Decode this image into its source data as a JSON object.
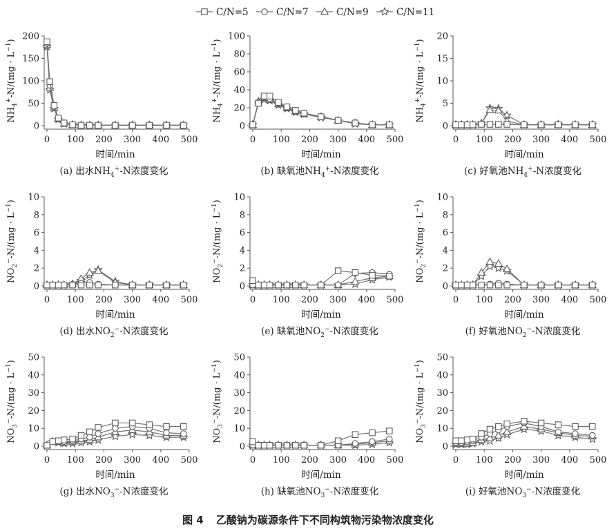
{
  "legend": [
    "C/N=5",
    "C/N=7",
    "C/N=9",
    "C/N=11"
  ],
  "figure_caption": {
    "number": "图 4",
    "text": "乙酸钠为碳源条件下不同构筑物污染物浓度变化"
  },
  "series_colors": {
    "line": "#707070",
    "marker_stroke": "#5a5a5a",
    "marker_fill": "#ffffff"
  },
  "chart_data": [
    {
      "type": "line",
      "id": "a",
      "caption": {
        "prefix": "(a) 出水NH",
        "sub": "4",
        "sup": "+",
        "suffix": "-N浓度变化"
      },
      "ylabel": {
        "main": "NH",
        "sub": "4",
        "sup": "+",
        "rest": "-N/(mg · L",
        "unit_sup": "−1",
        "end": ")"
      },
      "xlabel": "时间/min",
      "ylim": [
        0,
        200
      ],
      "yticks": [
        0,
        50,
        100,
        150,
        200
      ],
      "xlim": [
        0,
        480
      ],
      "xticks": [
        0,
        100,
        200,
        300,
        400,
        500
      ],
      "x": [
        0,
        10,
        25,
        40,
        60,
        90,
        120,
        150,
        180,
        240,
        300,
        360,
        420,
        480
      ],
      "series": [
        {
          "name": "C/N=5",
          "values": [
            187,
            98,
            45,
            17,
            6,
            2,
            1,
            1,
            1,
            1,
            1,
            1,
            1,
            1
          ]
        },
        {
          "name": "C/N=7",
          "values": [
            183,
            90,
            42,
            15,
            5,
            2,
            1,
            1,
            1,
            1,
            1,
            1,
            1,
            1
          ]
        },
        {
          "name": "C/N=9",
          "values": [
            180,
            85,
            40,
            15,
            5,
            2,
            1,
            1,
            1,
            1,
            1,
            1,
            1,
            1
          ]
        },
        {
          "name": "C/N=11",
          "values": [
            176,
            80,
            38,
            14,
            4,
            2,
            1,
            1,
            1,
            1,
            1,
            1,
            1,
            1
          ]
        }
      ]
    },
    {
      "type": "line",
      "id": "b",
      "caption": {
        "prefix": "(b) 缺氧池NH",
        "sub": "4",
        "sup": "+",
        "suffix": "-N浓度变化"
      },
      "ylabel": {
        "main": "NH",
        "sub": "4",
        "sup": "+",
        "rest": "-N/(mg · L",
        "unit_sup": "−1",
        "end": ")"
      },
      "xlabel": "时间/min",
      "ylim": [
        0,
        100
      ],
      "yticks": [
        0,
        20,
        40,
        60,
        80,
        100
      ],
      "xlim": [
        0,
        480
      ],
      "xticks": [
        0,
        100,
        200,
        300,
        400,
        500
      ],
      "x": [
        0,
        20,
        40,
        60,
        90,
        120,
        150,
        180,
        240,
        300,
        360,
        420,
        480
      ],
      "series": [
        {
          "name": "C/N=5",
          "values": [
            1,
            25,
            33,
            33,
            26,
            21,
            17,
            14,
            10,
            6,
            3,
            1,
            1
          ]
        },
        {
          "name": "C/N=7",
          "values": [
            1,
            26,
            32,
            30,
            25,
            20,
            16,
            13,
            10,
            6,
            3,
            1,
            1
          ]
        },
        {
          "name": "C/N=9",
          "values": [
            1,
            27,
            31,
            29,
            24,
            20,
            16,
            13,
            10,
            6,
            3,
            1,
            1
          ]
        },
        {
          "name": "C/N=11",
          "values": [
            1,
            25,
            29,
            28,
            23,
            19,
            15,
            13,
            9,
            6,
            2,
            1,
            1
          ]
        }
      ]
    },
    {
      "type": "line",
      "id": "c",
      "caption": {
        "prefix": "(c) 好氧池NH",
        "sub": "4",
        "sup": "+",
        "suffix": "-N浓度变化"
      },
      "ylabel": {
        "main": "NH",
        "sub": "4",
        "sup": "+",
        "rest": "-N/(mg · L",
        "unit_sup": "−1",
        "end": ")"
      },
      "xlabel": "时间/min",
      "ylim": [
        0,
        20
      ],
      "yticks": [
        0,
        5,
        10,
        15,
        20
      ],
      "xlim": [
        0,
        480
      ],
      "xticks": [
        0,
        100,
        200,
        300,
        400,
        500
      ],
      "x": [
        0,
        20,
        40,
        60,
        90,
        120,
        150,
        180,
        240,
        300,
        360,
        420,
        480
      ],
      "series": [
        {
          "name": "C/N=5",
          "values": [
            0.2,
            0.2,
            0.2,
            0.2,
            0.3,
            0.3,
            0.3,
            0.3,
            0.2,
            0.2,
            0.2,
            0.2,
            0.2
          ]
        },
        {
          "name": "C/N=7",
          "values": [
            0.2,
            0.2,
            0.2,
            0.2,
            0.3,
            0.3,
            0.3,
            0.3,
            0.2,
            0.2,
            0.2,
            0.2,
            0.2
          ]
        },
        {
          "name": "C/N=9",
          "values": [
            0.2,
            0.2,
            0.2,
            0.2,
            0.5,
            3.5,
            3.4,
            1.0,
            0.2,
            0.2,
            0.2,
            0.2,
            0.2
          ]
        },
        {
          "name": "C/N=11",
          "values": [
            0.2,
            0.2,
            0.2,
            0.2,
            0.5,
            3.9,
            3.8,
            2.3,
            0.2,
            0.2,
            0.3,
            0.2,
            0.2
          ]
        }
      ]
    },
    {
      "type": "line",
      "id": "d",
      "caption": {
        "prefix": "(d) 出水NO",
        "sub": "2",
        "sup": "−",
        "suffix": "-N浓度变化"
      },
      "ylabel": {
        "main": "NO",
        "sub": "2",
        "sup": "−",
        "rest": "-N/(mg · L",
        "unit_sup": "−1",
        "end": ")"
      },
      "xlabel": "时间/min",
      "ylim": [
        0,
        10
      ],
      "yticks": [
        0,
        2,
        4,
        6,
        8,
        10
      ],
      "xlim": [
        0,
        480
      ],
      "xticks": [
        0,
        100,
        200,
        300,
        400,
        500
      ],
      "x": [
        0,
        20,
        40,
        60,
        90,
        120,
        150,
        180,
        240,
        300,
        360,
        420,
        480
      ],
      "series": [
        {
          "name": "C/N=5",
          "values": [
            0.1,
            0.1,
            0.1,
            0.1,
            0.1,
            0.1,
            0.1,
            0.1,
            0.1,
            0.1,
            0.1,
            0.1,
            0.1
          ]
        },
        {
          "name": "C/N=7",
          "values": [
            0.1,
            0.1,
            0.1,
            0.1,
            0.2,
            0.3,
            0.4,
            0.2,
            0.1,
            0.1,
            0.1,
            0.1,
            0.1
          ]
        },
        {
          "name": "C/N=9",
          "values": [
            0.1,
            0.1,
            0.1,
            0.1,
            0.2,
            0.8,
            1.5,
            1.7,
            0.4,
            0.1,
            0.1,
            0.1,
            0.1
          ]
        },
        {
          "name": "C/N=11",
          "values": [
            0.1,
            0.1,
            0.1,
            0.1,
            0.2,
            0.6,
            1.2,
            1.8,
            0.5,
            0.1,
            0.1,
            0.1,
            0.1
          ]
        }
      ]
    },
    {
      "type": "line",
      "id": "e",
      "caption": {
        "prefix": "(e) 缺氧池NO",
        "sub": "2",
        "sup": "−",
        "suffix": "-N浓度变化"
      },
      "ylabel": {
        "main": "NO",
        "sub": "2",
        "sup": "−",
        "rest": "-N/(mg · L",
        "unit_sup": "−1",
        "end": ")"
      },
      "xlabel": "时间/min",
      "ylim": [
        0,
        10
      ],
      "yticks": [
        0,
        2,
        4,
        6,
        8,
        10
      ],
      "xlim": [
        0,
        480
      ],
      "xticks": [
        0,
        100,
        200,
        300,
        400,
        500
      ],
      "x": [
        0,
        20,
        40,
        60,
        90,
        120,
        150,
        180,
        240,
        300,
        360,
        420,
        480
      ],
      "series": [
        {
          "name": "C/N=5",
          "values": [
            0.6,
            0.1,
            0.1,
            0.1,
            0.1,
            0.1,
            0.1,
            0.1,
            0.1,
            1.7,
            1.5,
            1.2,
            1.1
          ]
        },
        {
          "name": "C/N=7",
          "values": [
            0.1,
            0.1,
            0.1,
            0.1,
            0.1,
            0.1,
            0.1,
            0.1,
            0.1,
            0.1,
            1.4,
            1.5,
            1.3
          ]
        },
        {
          "name": "C/N=9",
          "values": [
            0.1,
            0.1,
            0.1,
            0.1,
            0.1,
            0.1,
            0.1,
            0.1,
            0.1,
            0.1,
            0.5,
            0.9,
            1.1
          ]
        },
        {
          "name": "C/N=11",
          "values": [
            0.1,
            0.1,
            0.1,
            0.1,
            0.1,
            0.1,
            0.1,
            0.1,
            0.1,
            0.1,
            0.2,
            0.7,
            1.0
          ]
        }
      ]
    },
    {
      "type": "line",
      "id": "f",
      "caption": {
        "prefix": "(f) 好氧池NO",
        "sub": "2",
        "sup": "−",
        "suffix": "-N浓度变化"
      },
      "ylabel": {
        "main": "NO",
        "sub": "2",
        "sup": "−",
        "rest": "-N/(mg · L",
        "unit_sup": "−1",
        "end": ")"
      },
      "xlabel": "时间/min",
      "ylim": [
        0,
        10
      ],
      "yticks": [
        0,
        2,
        4,
        6,
        8,
        10
      ],
      "xlim": [
        0,
        480
      ],
      "xticks": [
        0,
        100,
        200,
        300,
        400,
        500
      ],
      "x": [
        0,
        20,
        40,
        60,
        90,
        120,
        150,
        180,
        240,
        300,
        360,
        420,
        480
      ],
      "series": [
        {
          "name": "C/N=5",
          "values": [
            0.1,
            0.1,
            0.1,
            0.1,
            0.1,
            0.1,
            0.1,
            0.1,
            0.1,
            0.1,
            0.1,
            0.1,
            0.1
          ]
        },
        {
          "name": "C/N=7",
          "values": [
            0.1,
            0.1,
            0.1,
            0.1,
            0.1,
            0.2,
            0.3,
            0.2,
            0.1,
            0.1,
            0.1,
            0.1,
            0.1
          ]
        },
        {
          "name": "C/N=9",
          "values": [
            0.1,
            0.1,
            0.1,
            0.1,
            1.5,
            2.7,
            2.5,
            1.9,
            0.1,
            0.1,
            0.1,
            0.1,
            0.1
          ]
        },
        {
          "name": "C/N=11",
          "values": [
            0.1,
            0.1,
            0.1,
            0.1,
            1.1,
            2.2,
            2.0,
            1.7,
            0.1,
            0.1,
            0.1,
            0.1,
            0.1
          ]
        }
      ]
    },
    {
      "type": "line",
      "id": "g",
      "caption": {
        "prefix": "(g) 出水NO",
        "sub": "3",
        "sup": "−",
        "suffix": "-N浓度变化"
      },
      "ylabel": {
        "main": "NO",
        "sub": "3",
        "sup": "−",
        "rest": "-N/(mg · L",
        "unit_sup": "−1",
        "end": ")"
      },
      "xlabel": "时间/min",
      "ylim": [
        0,
        50
      ],
      "yticks": [
        0,
        10,
        20,
        30,
        40,
        50
      ],
      "xlim": [
        0,
        480
      ],
      "xticks": [
        0,
        100,
        200,
        300,
        400,
        500
      ],
      "x": [
        0,
        20,
        40,
        60,
        90,
        120,
        150,
        180,
        240,
        300,
        360,
        420,
        480
      ],
      "series": [
        {
          "name": "C/N=5",
          "values": [
            0.5,
            2.5,
            3,
            3.5,
            4,
            6,
            8,
            10.5,
            13,
            13,
            12,
            11,
            11
          ]
        },
        {
          "name": "C/N=7",
          "values": [
            0.5,
            2.5,
            2.5,
            2.5,
            3,
            4,
            5,
            7,
            10,
            11,
            10,
            7.5,
            7
          ]
        },
        {
          "name": "C/N=9",
          "values": [
            0.5,
            2.5,
            2.5,
            2,
            2.5,
            3,
            3.5,
            5,
            8,
            9,
            8,
            6,
            6
          ]
        },
        {
          "name": "C/N=11",
          "values": [
            0.5,
            2.5,
            2,
            1.5,
            1.5,
            2,
            2.5,
            3.5,
            5.5,
            6.5,
            6,
            5,
            5
          ]
        }
      ]
    },
    {
      "type": "line",
      "id": "h",
      "caption": {
        "prefix": "(h) 缺氧池NO",
        "sub": "3",
        "sup": "−",
        "suffix": "-N浓度变化"
      },
      "ylabel": {
        "main": "NO",
        "sub": "3",
        "sup": "−",
        "rest": "-N/(mg · L",
        "unit_sup": "−1",
        "end": ")"
      },
      "xlabel": "时间/min",
      "ylim": [
        0,
        50
      ],
      "yticks": [
        0,
        10,
        20,
        30,
        40,
        50
      ],
      "xlim": [
        0,
        480
      ],
      "xticks": [
        0,
        100,
        200,
        300,
        400,
        500
      ],
      "x": [
        0,
        20,
        40,
        60,
        90,
        120,
        150,
        180,
        240,
        300,
        360,
        420,
        480
      ],
      "series": [
        {
          "name": "C/N=5",
          "values": [
            2.5,
            0.5,
            0.5,
            0.5,
            0.5,
            0.5,
            0.5,
            0.5,
            0.5,
            3,
            6.5,
            7.5,
            8.5
          ]
        },
        {
          "name": "C/N=7",
          "values": [
            0.5,
            0.5,
            0.5,
            0.5,
            0.5,
            0.5,
            0.5,
            0.5,
            0.5,
            0.5,
            1.5,
            2.5,
            4
          ]
        },
        {
          "name": "C/N=9",
          "values": [
            0.5,
            0.5,
            0.5,
            0.5,
            0.5,
            0.5,
            0.5,
            0.5,
            0.5,
            0.5,
            1,
            2,
            3
          ]
        },
        {
          "name": "C/N=11",
          "values": [
            0.5,
            0.5,
            0.5,
            0.5,
            0.5,
            0.5,
            0.5,
            0.5,
            0.5,
            0.5,
            0.5,
            1,
            2
          ]
        }
      ]
    },
    {
      "type": "line",
      "id": "i",
      "caption": {
        "prefix": "(i) 好氧池NO",
        "sub": "3",
        "sup": "−",
        "suffix": "-N浓度变化"
      },
      "ylabel": {
        "main": "NO",
        "sub": "3",
        "sup": "−",
        "rest": "-N/(mg · L",
        "unit_sup": "−1",
        "end": ")"
      },
      "xlabel": "时间/min",
      "ylim": [
        0,
        50
      ],
      "yticks": [
        0,
        10,
        20,
        30,
        40,
        50
      ],
      "xlim": [
        0,
        480
      ],
      "xticks": [
        0,
        100,
        200,
        300,
        400,
        500
      ],
      "x": [
        0,
        20,
        40,
        60,
        90,
        120,
        150,
        180,
        240,
        300,
        360,
        420,
        480
      ],
      "series": [
        {
          "name": "C/N=5",
          "values": [
            3,
            3,
            3.5,
            4,
            7,
            9.5,
            11,
            12.5,
            14,
            13,
            12,
            11,
            11
          ]
        },
        {
          "name": "C/N=7",
          "values": [
            2,
            2,
            2.5,
            3,
            5,
            7,
            9,
            11,
            13,
            11,
            8,
            7,
            6
          ]
        },
        {
          "name": "C/N=9",
          "values": [
            1.5,
            1.5,
            1.5,
            2,
            3.5,
            4.5,
            6,
            8,
            11,
            9.5,
            7.5,
            6,
            5.5
          ]
        },
        {
          "name": "C/N=11",
          "values": [
            1,
            1,
            1,
            1.5,
            2.5,
            3,
            4.5,
            6.5,
            9.5,
            8.5,
            6,
            5,
            4
          ]
        }
      ]
    }
  ]
}
